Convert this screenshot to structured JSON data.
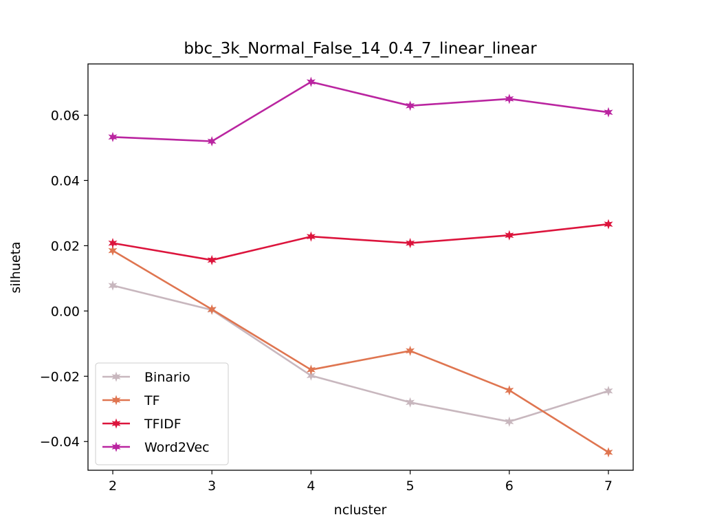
{
  "chart_data": {
    "type": "line",
    "title": "bbc_3k_Normal_False_14_0.4_7_linear_linear",
    "xlabel": "ncluster",
    "ylabel": "silhueta",
    "x": [
      2,
      3,
      4,
      5,
      6,
      7
    ],
    "x_ticks": [
      "2",
      "3",
      "4",
      "5",
      "6",
      "7"
    ],
    "y_ticks": [
      -0.04,
      -0.02,
      0.0,
      0.02,
      0.04,
      0.06
    ],
    "y_tick_labels": [
      "−0.04",
      "−0.02",
      "0.00",
      "0.02",
      "0.04",
      "0.06"
    ],
    "xlim": [
      1.75,
      7.25
    ],
    "ylim": [
      -0.0488,
      0.0757
    ],
    "grid": false,
    "legend_position": "lower-left",
    "series": [
      {
        "name": "Binario",
        "color": "#c8b7be",
        "values": [
          0.0078,
          0.0003,
          -0.0198,
          -0.028,
          -0.0339,
          -0.0245
        ]
      },
      {
        "name": "TF",
        "color": "#df7550",
        "values": [
          0.0185,
          0.0005,
          -0.018,
          -0.0122,
          -0.0243,
          -0.0433
        ]
      },
      {
        "name": "TFIDF",
        "color": "#dc143c",
        "values": [
          0.0208,
          0.0156,
          0.0228,
          0.0208,
          0.0232,
          0.0266
        ]
      },
      {
        "name": "Word2Vec",
        "color": "#ba25a0",
        "values": [
          0.0533,
          0.052,
          0.0702,
          0.0629,
          0.065,
          0.0609
        ]
      }
    ]
  }
}
